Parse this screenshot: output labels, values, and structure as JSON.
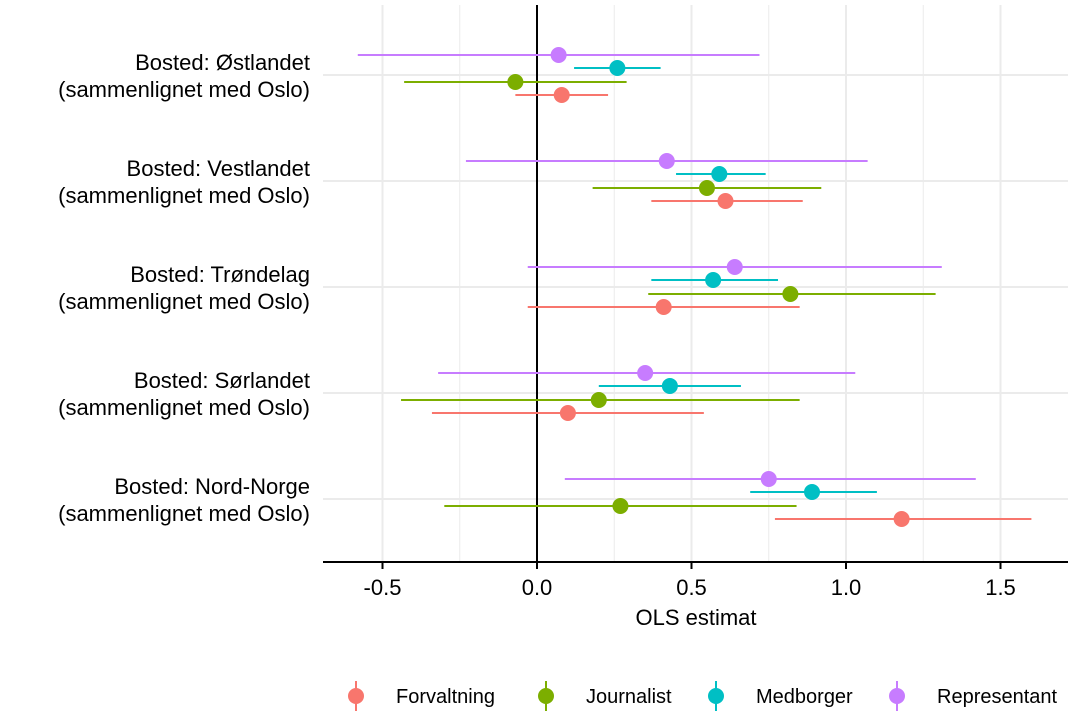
{
  "chart_data": {
    "type": "scatter",
    "subtype": "dot-and-whisker (point estimate with confidence interval)",
    "title": "",
    "xlabel": "OLS estimat",
    "ylabel": "",
    "xlim": [
      -0.69,
      1.72
    ],
    "x_ticks": [
      -0.5,
      0.0,
      0.5,
      1.0,
      1.5
    ],
    "x_tick_labels": [
      "-0.5",
      "0.0",
      "0.5",
      "1.0",
      "1.5"
    ],
    "reference_line_x": 0,
    "grid": true,
    "legend_position": "bottom",
    "categories": [
      {
        "line1": "Bosted: Østlandet",
        "line2": "(sammenlignet med Oslo)"
      },
      {
        "line1": "Bosted: Vestlandet",
        "line2": "(sammenlignet med Oslo)"
      },
      {
        "line1": "Bosted: Trøndelag",
        "line2": "(sammenlignet med Oslo)"
      },
      {
        "line1": "Bosted: Sørlandet",
        "line2": "(sammenlignet med Oslo)"
      },
      {
        "line1": "Bosted: Nord-Norge",
        "line2": "(sammenlignet med Oslo)"
      }
    ],
    "series": [
      {
        "name": "Forvaltning",
        "color": "#F8766D",
        "points": [
          {
            "est": 0.08,
            "lo": -0.07,
            "hi": 0.23
          },
          {
            "est": 0.61,
            "lo": 0.37,
            "hi": 0.86
          },
          {
            "est": 0.41,
            "lo": -0.03,
            "hi": 0.85
          },
          {
            "est": 0.1,
            "lo": -0.34,
            "hi": 0.54
          },
          {
            "est": 1.18,
            "lo": 0.77,
            "hi": 1.6
          }
        ]
      },
      {
        "name": "Journalist",
        "color": "#7CAE00",
        "points": [
          {
            "est": -0.07,
            "lo": -0.43,
            "hi": 0.29
          },
          {
            "est": 0.55,
            "lo": 0.18,
            "hi": 0.92
          },
          {
            "est": 0.82,
            "lo": 0.36,
            "hi": 1.29
          },
          {
            "est": 0.2,
            "lo": -0.44,
            "hi": 0.85
          },
          {
            "est": 0.27,
            "lo": -0.3,
            "hi": 0.84
          }
        ]
      },
      {
        "name": "Medborger",
        "color": "#00BFC4",
        "points": [
          {
            "est": 0.26,
            "lo": 0.12,
            "hi": 0.4
          },
          {
            "est": 0.59,
            "lo": 0.45,
            "hi": 0.74
          },
          {
            "est": 0.57,
            "lo": 0.37,
            "hi": 0.78
          },
          {
            "est": 0.43,
            "lo": 0.2,
            "hi": 0.66
          },
          {
            "est": 0.89,
            "lo": 0.69,
            "hi": 1.1
          }
        ]
      },
      {
        "name": "Representant",
        "color": "#C77CFF",
        "points": [
          {
            "est": 0.07,
            "lo": -0.58,
            "hi": 0.72
          },
          {
            "est": 0.42,
            "lo": -0.23,
            "hi": 1.07
          },
          {
            "est": 0.64,
            "lo": -0.03,
            "hi": 1.31
          },
          {
            "est": 0.35,
            "lo": -0.32,
            "hi": 1.03
          },
          {
            "est": 0.75,
            "lo": 0.09,
            "hi": 1.42
          }
        ]
      }
    ]
  }
}
